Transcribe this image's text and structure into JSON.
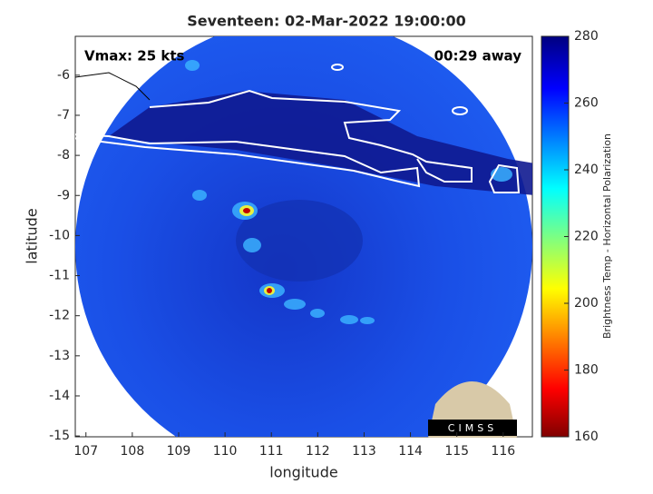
{
  "chart_data": {
    "type": "map",
    "title": "Seventeen: 02-Mar-2022 19:00:00",
    "xlabel": "longitude",
    "ylabel": "latitude",
    "xlim": [
      106.77,
      116.63
    ],
    "ylim": [
      -15.02,
      -5.03
    ],
    "xticks": [
      107,
      108,
      109,
      110,
      111,
      112,
      113,
      114,
      115,
      116
    ],
    "yticks": [
      -15,
      -14,
      -13,
      -12,
      -11,
      -10,
      -9,
      -8,
      -7,
      -6
    ],
    "annotations": [
      "Vmax: 25 kts",
      "00:29 away"
    ],
    "logo": "CIMSS",
    "colorbar": {
      "label": "Brightness Temp - Horizontal Polarization",
      "lim": [
        160,
        280
      ],
      "ticks": [
        160,
        180,
        200,
        220,
        240,
        260,
        280
      ]
    }
  }
}
